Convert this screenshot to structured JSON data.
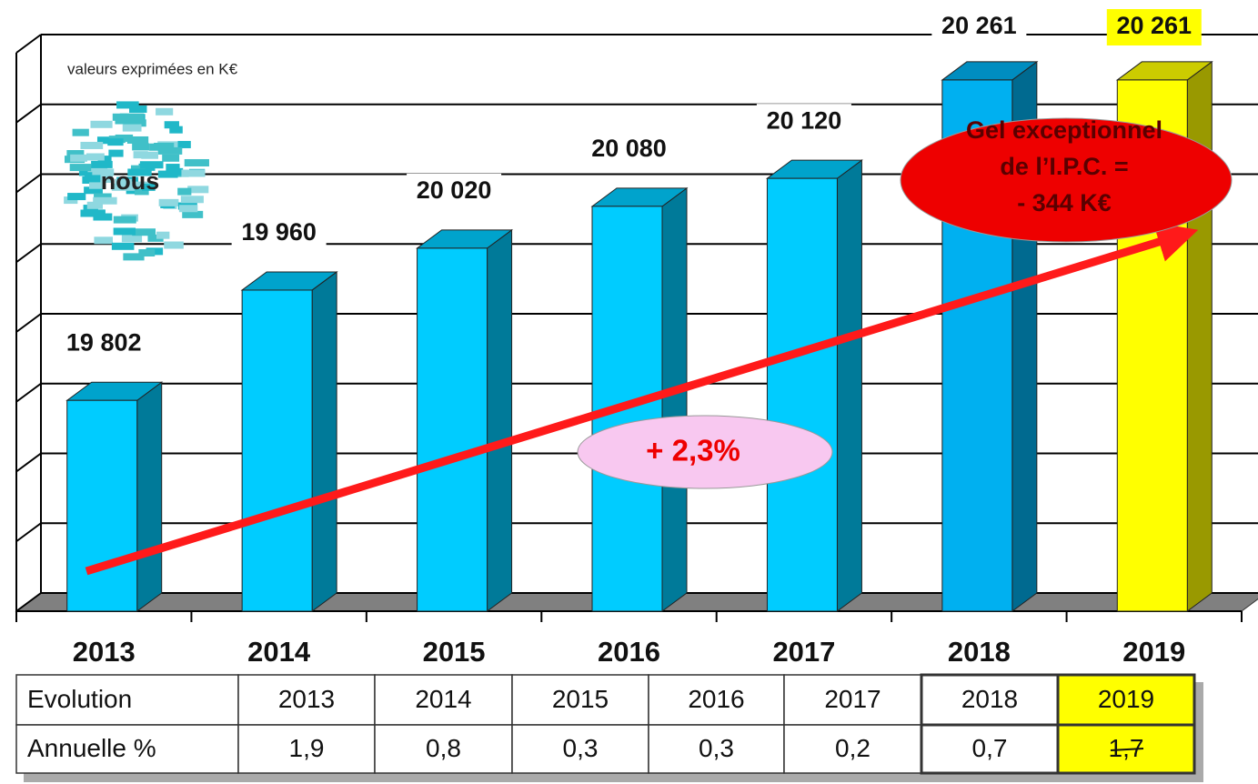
{
  "chart_data": {
    "type": "bar3d",
    "subtitle": "valeurs exprimées en K€",
    "categories": [
      "2013",
      "2014",
      "2015",
      "2016",
      "2017",
      "2018",
      "2019"
    ],
    "values": [
      19802,
      19960,
      20020,
      20080,
      20120,
      20261,
      20261
    ],
    "value_labels": [
      "19 802",
      "19 960",
      "20 020",
      "20 080",
      "20 120",
      "20 261",
      "20 261"
    ],
    "colors": [
      "#00ccff",
      "#00ccff",
      "#00ccff",
      "#00ccff",
      "#00ccff",
      "#00b0f0",
      "#ffff00"
    ],
    "ylim": [
      19500,
      20300
    ],
    "yticks": [
      19500,
      19600,
      19700,
      19800,
      19900,
      20000,
      20100,
      20200,
      20300
    ],
    "grid": true,
    "logo_text": "nous",
    "trend_label": "+ 2,3%",
    "callout": [
      "Gel exceptionnel",
      "de l’I.P.C. =",
      "- 344 K€"
    ]
  },
  "table": {
    "header": [
      "Evolution",
      "2013",
      "2014",
      "2015",
      "2016",
      "2017",
      "2018",
      "2019"
    ],
    "rows": [
      [
        "Annuelle %",
        "1,9",
        "0,8",
        "0,3",
        "0,3",
        "0,2",
        "0,7",
        "1,7"
      ]
    ]
  }
}
